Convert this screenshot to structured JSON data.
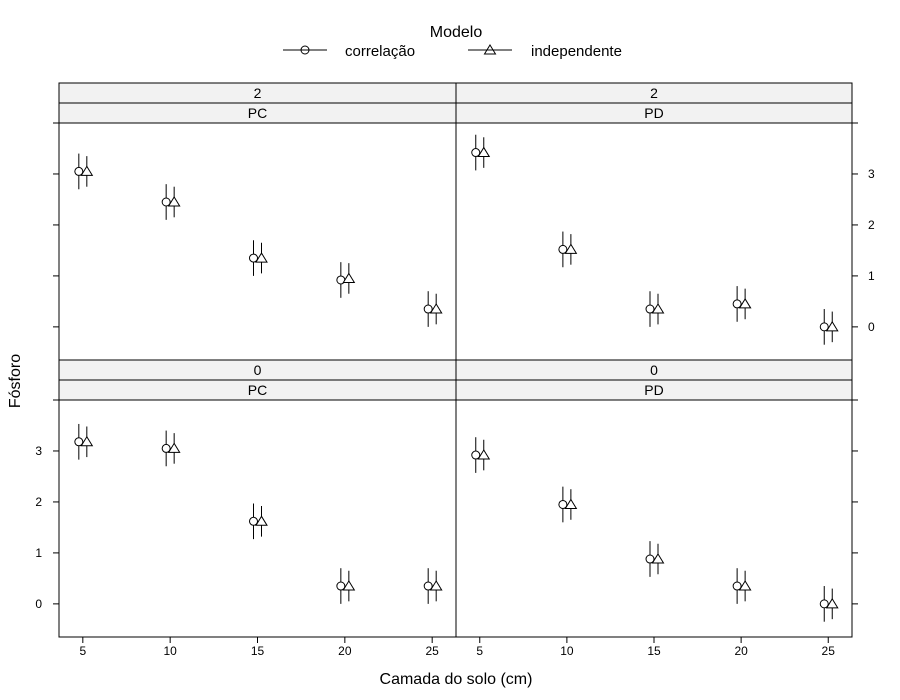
{
  "legend": {
    "title": "Modelo",
    "entries": [
      {
        "label": "correlação",
        "marker": "circle"
      },
      {
        "label": "independente",
        "marker": "triangle"
      }
    ]
  },
  "chart_data": {
    "type": "scatter",
    "xlabel": "Camada do solo (cm)",
    "ylabel": "Fósforo",
    "x_ticks": [
      5,
      10,
      15,
      20,
      25
    ],
    "y_ticks": [
      0,
      1,
      2,
      3
    ],
    "ylim": [
      -0.65,
      4.0
    ],
    "panels": [
      {
        "row": "top",
        "col": "left",
        "strip_top": "2",
        "strip_bottom": "PC",
        "series": [
          {
            "name": "correlação",
            "points": [
              {
                "x": 5,
                "y": 3.05,
                "lo": 2.7,
                "hi": 3.4
              },
              {
                "x": 10,
                "y": 2.45,
                "lo": 2.1,
                "hi": 2.8
              },
              {
                "x": 15,
                "y": 1.35,
                "lo": 1.0,
                "hi": 1.7
              },
              {
                "x": 20,
                "y": 0.92,
                "lo": 0.57,
                "hi": 1.27
              },
              {
                "x": 25,
                "y": 0.35,
                "lo": 0.0,
                "hi": 0.7
              }
            ]
          },
          {
            "name": "independente",
            "points": [
              {
                "x": 5,
                "y": 3.05,
                "lo": 2.75,
                "hi": 3.35
              },
              {
                "x": 10,
                "y": 2.45,
                "lo": 2.15,
                "hi": 2.75
              },
              {
                "x": 15,
                "y": 1.35,
                "lo": 1.05,
                "hi": 1.65
              },
              {
                "x": 20,
                "y": 0.95,
                "lo": 0.65,
                "hi": 1.25
              },
              {
                "x": 25,
                "y": 0.35,
                "lo": 0.05,
                "hi": 0.65
              }
            ]
          }
        ]
      },
      {
        "row": "top",
        "col": "right",
        "strip_top": "2",
        "strip_bottom": "PD",
        "series": [
          {
            "name": "correlação",
            "points": [
              {
                "x": 5,
                "y": 3.42,
                "lo": 3.07,
                "hi": 3.77
              },
              {
                "x": 10,
                "y": 1.52,
                "lo": 1.17,
                "hi": 1.87
              },
              {
                "x": 15,
                "y": 0.35,
                "lo": 0.0,
                "hi": 0.7
              },
              {
                "x": 20,
                "y": 0.45,
                "lo": 0.1,
                "hi": 0.8
              },
              {
                "x": 25,
                "y": 0.0,
                "lo": -0.35,
                "hi": 0.35
              }
            ]
          },
          {
            "name": "independente",
            "points": [
              {
                "x": 5,
                "y": 3.42,
                "lo": 3.12,
                "hi": 3.72
              },
              {
                "x": 10,
                "y": 1.52,
                "lo": 1.22,
                "hi": 1.82
              },
              {
                "x": 15,
                "y": 0.35,
                "lo": 0.05,
                "hi": 0.65
              },
              {
                "x": 20,
                "y": 0.45,
                "lo": 0.15,
                "hi": 0.75
              },
              {
                "x": 25,
                "y": 0.0,
                "lo": -0.3,
                "hi": 0.3
              }
            ]
          }
        ]
      },
      {
        "row": "bottom",
        "col": "left",
        "strip_top": "0",
        "strip_bottom": "PC",
        "series": [
          {
            "name": "correlação",
            "points": [
              {
                "x": 5,
                "y": 3.18,
                "lo": 2.83,
                "hi": 3.53
              },
              {
                "x": 10,
                "y": 3.05,
                "lo": 2.7,
                "hi": 3.4
              },
              {
                "x": 15,
                "y": 1.62,
                "lo": 1.27,
                "hi": 1.97
              },
              {
                "x": 20,
                "y": 0.35,
                "lo": 0.0,
                "hi": 0.7
              },
              {
                "x": 25,
                "y": 0.35,
                "lo": 0.0,
                "hi": 0.7
              }
            ]
          },
          {
            "name": "independente",
            "points": [
              {
                "x": 5,
                "y": 3.18,
                "lo": 2.88,
                "hi": 3.48
              },
              {
                "x": 10,
                "y": 3.05,
                "lo": 2.75,
                "hi": 3.35
              },
              {
                "x": 15,
                "y": 1.62,
                "lo": 1.32,
                "hi": 1.92
              },
              {
                "x": 20,
                "y": 0.35,
                "lo": 0.05,
                "hi": 0.65
              },
              {
                "x": 25,
                "y": 0.35,
                "lo": 0.05,
                "hi": 0.65
              }
            ]
          }
        ]
      },
      {
        "row": "bottom",
        "col": "right",
        "strip_top": "0",
        "strip_bottom": "PD",
        "series": [
          {
            "name": "correlação",
            "points": [
              {
                "x": 5,
                "y": 2.92,
                "lo": 2.57,
                "hi": 3.27
              },
              {
                "x": 10,
                "y": 1.95,
                "lo": 1.6,
                "hi": 2.3
              },
              {
                "x": 15,
                "y": 0.88,
                "lo": 0.53,
                "hi": 1.23
              },
              {
                "x": 20,
                "y": 0.35,
                "lo": 0.0,
                "hi": 0.7
              },
              {
                "x": 25,
                "y": 0.0,
                "lo": -0.35,
                "hi": 0.35
              }
            ]
          },
          {
            "name": "independente",
            "points": [
              {
                "x": 5,
                "y": 2.92,
                "lo": 2.62,
                "hi": 3.22
              },
              {
                "x": 10,
                "y": 1.95,
                "lo": 1.65,
                "hi": 2.25
              },
              {
                "x": 15,
                "y": 0.88,
                "lo": 0.58,
                "hi": 1.18
              },
              {
                "x": 20,
                "y": 0.35,
                "lo": 0.05,
                "hi": 0.65
              },
              {
                "x": 25,
                "y": 0.0,
                "lo": -0.3,
                "hi": 0.3
              }
            ]
          }
        ]
      }
    ],
    "grid": false,
    "legend_position": "top"
  }
}
